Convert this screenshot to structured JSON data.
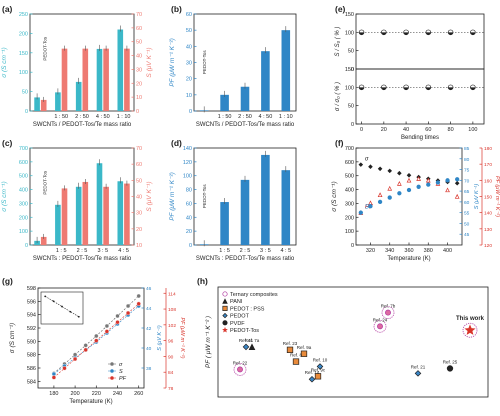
{
  "colors": {
    "teal": "#3bb8c8",
    "salmon": "#ee7a72",
    "blue": "#2f86c6",
    "red": "#d9342b",
    "black": "#222222"
  },
  "chart_data": [
    {
      "panel": "(a)",
      "type": "bar",
      "xlabel": "SWCNTs / PEDOT-Tos/Te mass ratio",
      "ylabel_left": "σ (S cm⁻¹)",
      "ylabel_right": "S (μV K⁻¹)",
      "ylim_left": [
        0,
        250
      ],
      "ylim_right": [
        0,
        70
      ],
      "yticks_left": [
        0,
        50,
        100,
        150,
        200,
        250
      ],
      "yticks_right": [
        0,
        10,
        20,
        30,
        40,
        50,
        60,
        70
      ],
      "categories": [
        "PEDOT-Tos",
        "1 : 50",
        "2 : 50",
        "4 : 50",
        "1 : 10"
      ],
      "tick_labels": [
        "",
        "1 : 50",
        "2 : 50",
        "4 : 50",
        "1 : 10"
      ],
      "inline_label": "PEDOT-Tos",
      "series": [
        {
          "axis": "left",
          "values": [
            35,
            48,
            75,
            160,
            210
          ]
        },
        {
          "axis": "right",
          "values": [
            8,
            45,
            45,
            45,
            45
          ]
        }
      ]
    },
    {
      "panel": "(b)",
      "type": "bar",
      "xlabel": "SWCNTs / PEDOT-Tos/Te mass ratio",
      "ylabel": "PF (μW m⁻¹ K⁻²)",
      "ylim": [
        0,
        60
      ],
      "yticks": [
        0,
        10,
        20,
        30,
        40,
        50,
        60
      ],
      "categories": [
        "PEDOT-Tos",
        "1 : 50",
        "2 : 50",
        "4 : 50",
        "1 : 10"
      ],
      "tick_labels": [
        "",
        "1 : 50",
        "2 : 50",
        "4 : 50",
        "1 : 10"
      ],
      "inline_label": "PEDOT-Tos",
      "values": [
        0.4,
        10,
        15,
        37,
        50
      ]
    },
    {
      "panel": "(c)",
      "type": "bar",
      "xlabel": "SWCNTs : PEDOT-Tos/Te mass ratio",
      "ylabel_left": "σ (S cm⁻¹)",
      "ylabel_right": "S (μV K⁻¹)",
      "ylim_left": [
        0,
        700
      ],
      "ylim_right": [
        10,
        70
      ],
      "yticks_left": [
        0,
        100,
        200,
        300,
        400,
        500,
        600,
        700
      ],
      "yticks_right": [
        10,
        20,
        30,
        40,
        50,
        60,
        70
      ],
      "categories": [
        "PEDOT-Tos",
        "1 : 5",
        "2 : 5",
        "3 : 5",
        "4 : 5"
      ],
      "tick_labels": [
        "",
        "1 : 5",
        "2 : 5",
        "3 : 5",
        "4 : 5"
      ],
      "inline_label": "PEDOT-Tos",
      "series": [
        {
          "axis": "left",
          "values": [
            30,
            290,
            420,
            590,
            460
          ]
        },
        {
          "axis": "right",
          "values": [
            15,
            45,
            49,
            46,
            48
          ]
        }
      ]
    },
    {
      "panel": "(d)",
      "type": "bar",
      "xlabel": "SWCNTs : PEDOT-Tos/Te mass ratio",
      "ylabel": "PF (μW m⁻¹ K⁻²)",
      "ylim": [
        0,
        140
      ],
      "yticks": [
        0,
        20,
        40,
        60,
        80,
        100,
        120,
        140
      ],
      "categories": [
        "PEDOT-Tos",
        "1 : 5",
        "2 : 5",
        "3 : 5",
        "4 : 5"
      ],
      "tick_labels": [
        "",
        "1 : 5",
        "2 : 5",
        "3 : 5",
        "4 : 5"
      ],
      "inline_label": "PEDOT-Tos",
      "values": [
        1,
        62,
        94,
        130,
        108
      ]
    },
    {
      "panel": "(e)",
      "type": "scatter",
      "xlabel": "Bending times",
      "xlim": [
        -5,
        110
      ],
      "xticks": [
        0,
        20,
        40,
        60,
        80,
        100
      ],
      "x": [
        0,
        20,
        40,
        60,
        80,
        100
      ],
      "subplots": [
        {
          "ylabel": "S / S₀ ( % )",
          "ylim": [
            0,
            150
          ],
          "yticks": [
            0,
            50,
            100,
            150
          ],
          "values": [
            100,
            100,
            100,
            100,
            100,
            100
          ]
        },
        {
          "ylabel": "σ / σ₀ ( % )",
          "ylim": [
            0,
            150
          ],
          "yticks": [
            0,
            50,
            100,
            150
          ],
          "values": [
            100,
            100,
            100,
            100,
            100,
            100
          ]
        }
      ]
    },
    {
      "panel": "(f)",
      "type": "scatter",
      "xlabel": "Temperature (K)",
      "xlim": [
        305,
        415
      ],
      "xticks": [
        320,
        340,
        360,
        380,
        400
      ],
      "ylabel_left": "σ (S cm⁻¹)",
      "ylabel_right_inner": "S (μV K⁻¹)",
      "ylabel_right_outer": "PF (μW m⁻¹ K⁻²)",
      "ylim_left": [
        0,
        700
      ],
      "yticks_left": [
        0,
        100,
        200,
        300,
        400,
        500,
        600,
        700
      ],
      "ylim_right_inner": [
        40,
        85
      ],
      "yticks_right_inner": [
        45,
        50,
        55,
        60,
        65,
        70,
        75,
        80,
        85
      ],
      "ylim_right_outer": [
        120,
        180
      ],
      "yticks_right_outer": [
        120,
        130,
        140,
        150,
        160,
        170,
        180
      ],
      "series_labels": [
        "σ",
        "PF",
        "S"
      ],
      "x": [
        310,
        320,
        330,
        340,
        350,
        360,
        370,
        380,
        390,
        400,
        410
      ],
      "series": [
        {
          "axis": "left",
          "values": [
            580,
            565,
            550,
            535,
            518,
            503,
            490,
            478,
            465,
            455,
            446
          ]
        },
        {
          "axis": "right_outer",
          "values": [
            140,
            146,
            151,
            155,
            158,
            160,
            161,
            160,
            158,
            154,
            150
          ]
        },
        {
          "axis": "right_inner",
          "values": [
            55,
            58,
            60,
            62,
            64,
            65.5,
            67,
            68,
            69,
            70,
            70.5
          ]
        }
      ]
    },
    {
      "panel": "(g)",
      "type": "scatter",
      "xlabel": "Temperature (K)",
      "xlim": [
        165,
        265
      ],
      "xticks": [
        180,
        200,
        220,
        240,
        260
      ],
      "ylabel_left": "σ (S cm⁻¹)",
      "ylabel_right_inner": "S (μV K⁻¹)",
      "ylabel_right_outer": "PF (μW m⁻¹ K⁻²)",
      "ylim_left": [
        583,
        598
      ],
      "yticks_left": [
        584,
        586,
        588,
        590,
        592,
        594,
        596,
        598
      ],
      "ylim_right_inner": [
        36,
        46
      ],
      "yticks_right_inner": [
        38,
        40,
        42,
        44,
        46
      ],
      "ylim_right_outer": [
        78,
        116
      ],
      "yticks_right_outer": [
        78,
        84,
        90,
        96,
        102,
        108,
        114
      ],
      "legend": [
        "σ",
        "S",
        "PF"
      ],
      "legend_position": "bottom-left",
      "x": [
        180,
        190,
        200,
        210,
        220,
        230,
        240,
        250,
        260
      ],
      "series": [
        {
          "name": "σ",
          "axis": "left",
          "values": [
            585.2,
            586.6,
            588.0,
            589.4,
            590.8,
            592.3,
            593.8,
            595.3,
            596.8
          ]
        },
        {
          "name": "S",
          "axis": "right_inner",
          "values": [
            37.4,
            38.2,
            39.0,
            39.8,
            40.6,
            41.5,
            42.4,
            43.3,
            44.2
          ]
        },
        {
          "name": "PF",
          "axis": "right_outer",
          "values": [
            82,
            85.5,
            89,
            92.5,
            96,
            99.5,
            103,
            106.5,
            110
          ]
        }
      ],
      "inset": {
        "x": [
          180,
          200,
          220,
          240,
          260
        ],
        "values": [
          0.95,
          0.78,
          0.6,
          0.42,
          0.25
        ]
      }
    },
    {
      "panel": "(h)",
      "type": "scatter",
      "ylabel": "PF ( μW m⁻¹ K⁻² )",
      "legend": [
        "Ternary composites",
        "PANI",
        "PEDOT : PSS",
        "PEDOT",
        "PVDF",
        "PEDOT-Tos"
      ],
      "legend_position": "top-left",
      "points": [
        {
          "label": "Ref. 7a",
          "category": "PANI",
          "rank": 0.45
        },
        {
          "label": "Ref. 11",
          "category": "PEDOT",
          "rank": 0.45
        },
        {
          "label": "Ref. 22",
          "category": "Ternary composites",
          "rank": 0.22
        },
        {
          "label": "Ref. 23",
          "category": "PEDOT : PSS",
          "rank": 0.42
        },
        {
          "label": "Ref. 9a",
          "category": "PEDOT : PSS",
          "rank": 0.38
        },
        {
          "label": "Ref. 8",
          "category": "PEDOT : PSS",
          "rank": 0.3
        },
        {
          "label": "Ref. 14",
          "category": "PEDOT",
          "rank": 0.12
        },
        {
          "label": "Ref. 10",
          "category": "PEDOT",
          "rank": 0.25
        },
        {
          "label": "Ref. 9c",
          "category": "PEDOT : PSS",
          "rank": 0.15
        },
        {
          "label": "Ref. 24",
          "category": "Ternary composites",
          "rank": 0.66
        },
        {
          "label": "Ref. 7b",
          "category": "Ternary composites",
          "rank": 0.8
        },
        {
          "label": "Ref. 21",
          "category": "PEDOT",
          "rank": 0.18
        },
        {
          "label": "Ref. 25",
          "category": "PVDF",
          "rank": 0.23
        },
        {
          "label": "This work",
          "category": "PEDOT-Tos",
          "rank": 0.62
        }
      ]
    }
  ]
}
